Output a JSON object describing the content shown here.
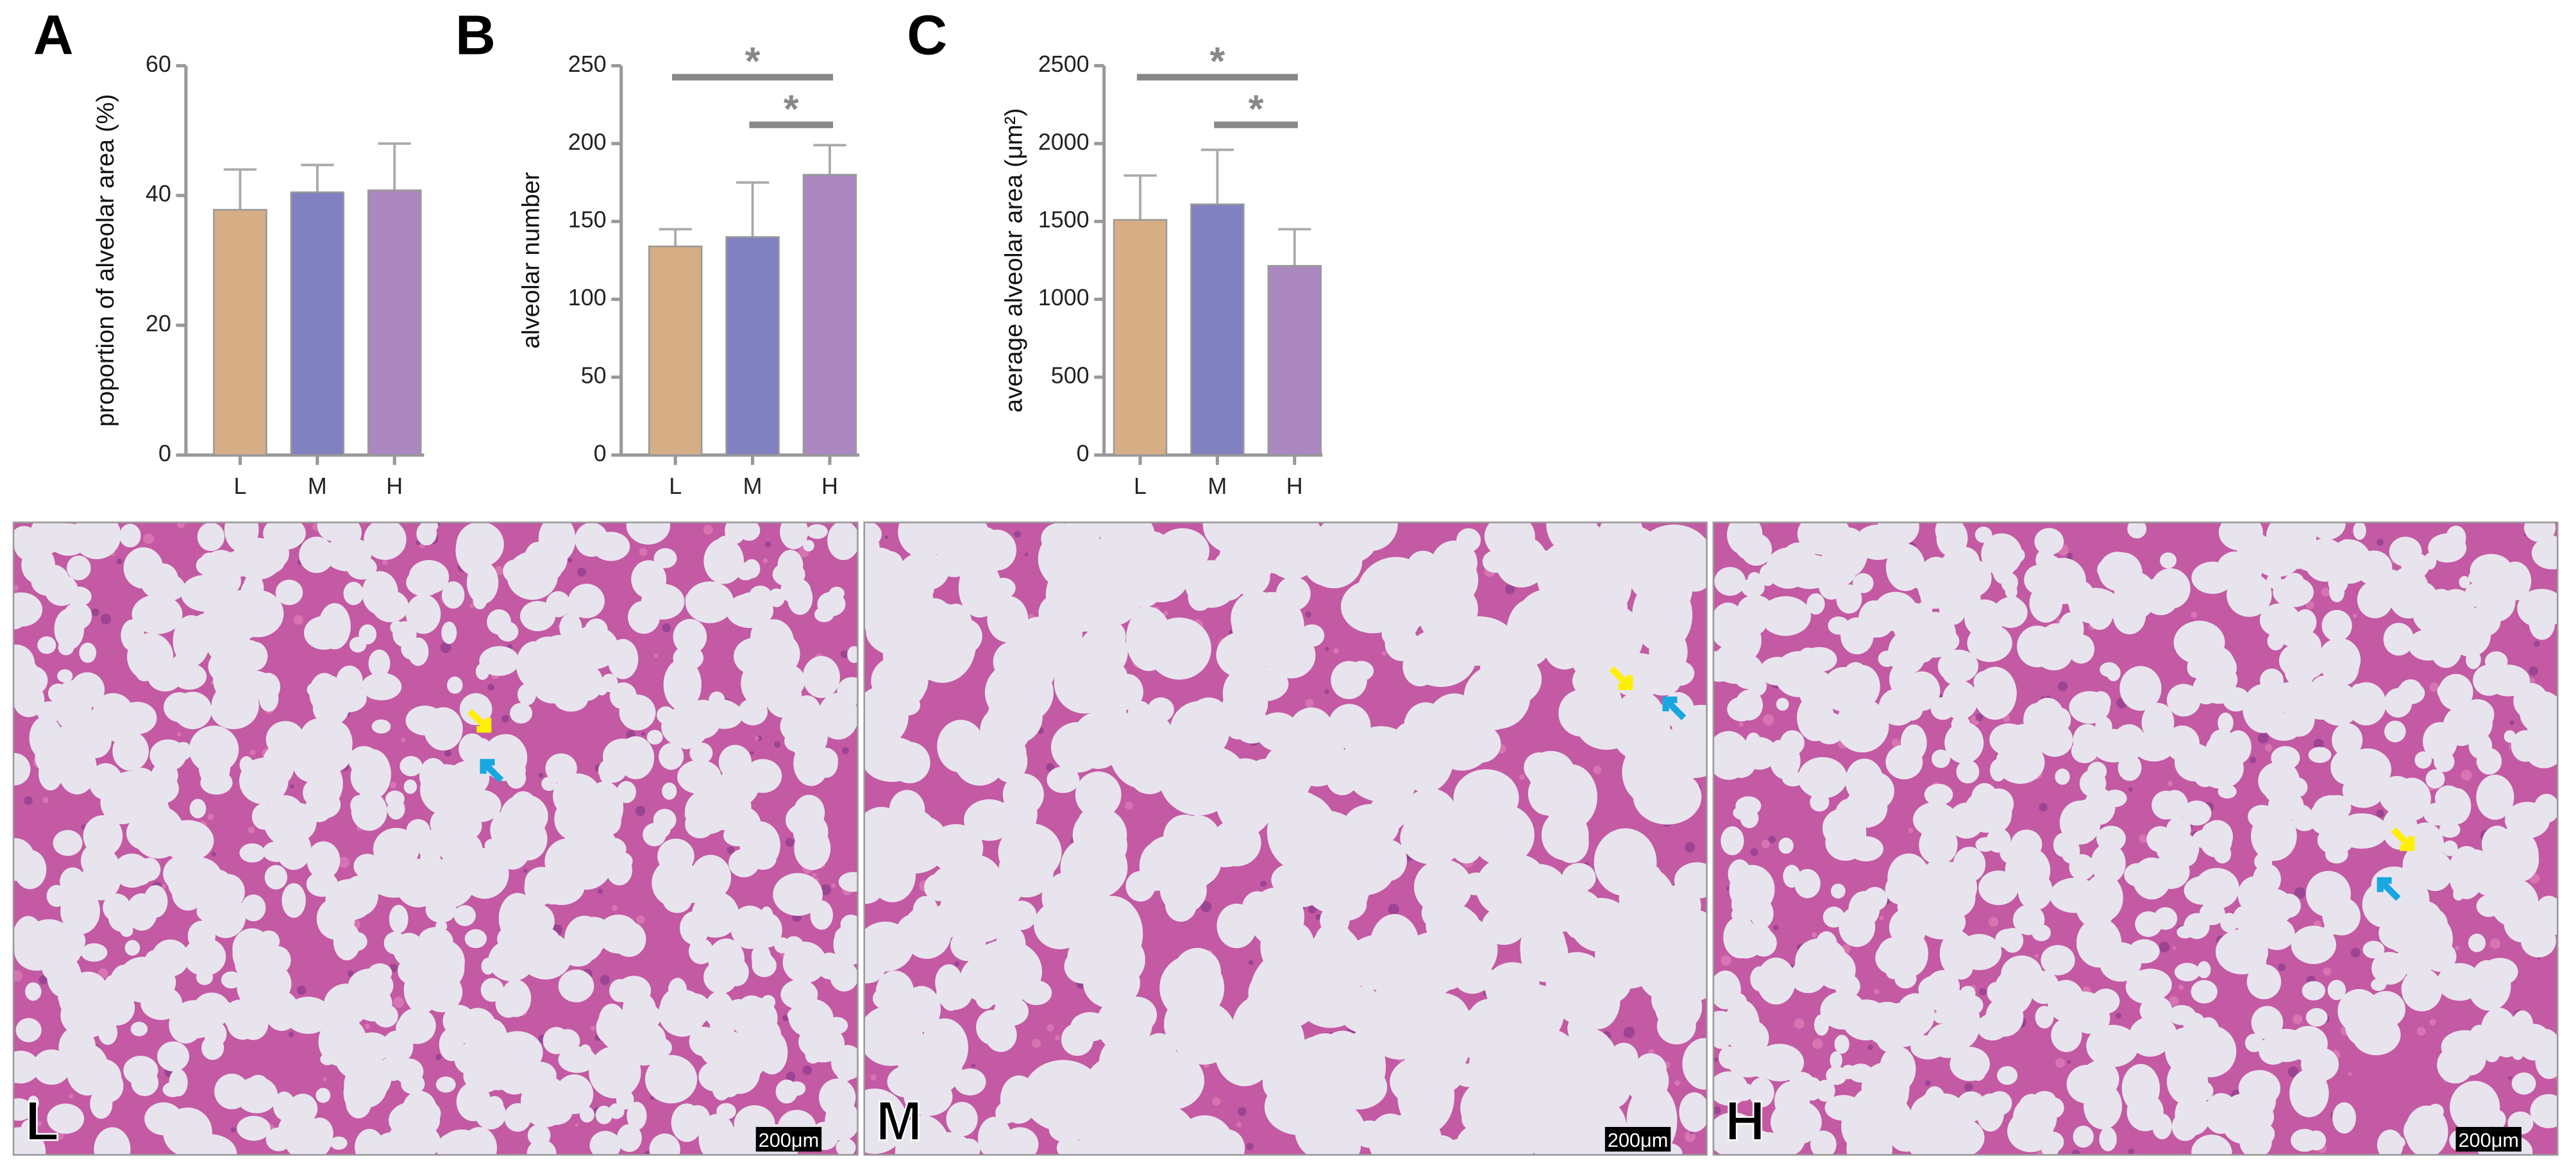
{
  "chart_data": [
    {
      "type": "bar",
      "panel": "A",
      "ylabel": "proportion of alveolar area (%)",
      "categories": [
        "L",
        "M",
        "H"
      ],
      "values": [
        37.8,
        40.5,
        40.8
      ],
      "errors": [
        6.2,
        4.2,
        7.2
      ],
      "colors": [
        "#d5ae86",
        "#8181c1",
        "#ab88bf"
      ],
      "ylim": [
        0,
        60
      ],
      "yticks": [
        0,
        20,
        40,
        60
      ]
    },
    {
      "type": "bar",
      "panel": "B",
      "ylabel": "alveolar number",
      "categories": [
        "L",
        "M",
        "H"
      ],
      "values": [
        134,
        140,
        180
      ],
      "errors": [
        11,
        35,
        19
      ],
      "colors": [
        "#d5ae86",
        "#8181c1",
        "#ab88bf"
      ],
      "ylim": [
        0,
        250
      ],
      "yticks": [
        0,
        50,
        100,
        150,
        200,
        250
      ],
      "annotations": [
        {
          "from": 0,
          "to": 2,
          "label": "*"
        },
        {
          "from": 1,
          "to": 2,
          "label": "*"
        }
      ]
    },
    {
      "type": "bar",
      "panel": "C",
      "ylabel": "average alveolar area (μm²)",
      "categories": [
        "L",
        "M",
        "H"
      ],
      "values": [
        1510,
        1610,
        1215
      ],
      "errors": [
        285,
        350,
        235
      ],
      "colors": [
        "#d5ae86",
        "#8181c1",
        "#ab88bf"
      ],
      "ylim": [
        0,
        2500
      ],
      "yticks": [
        0,
        500,
        1000,
        1500,
        2000,
        2500
      ],
      "annotations": [
        {
          "from": 0,
          "to": 2,
          "label": "*"
        },
        {
          "from": 1,
          "to": 2,
          "label": "*"
        }
      ]
    }
  ],
  "images": [
    {
      "label": "L",
      "scale_bar": "200μm"
    },
    {
      "label": "M",
      "scale_bar": "200μm"
    },
    {
      "label": "H",
      "scale_bar": "200μm"
    }
  ]
}
